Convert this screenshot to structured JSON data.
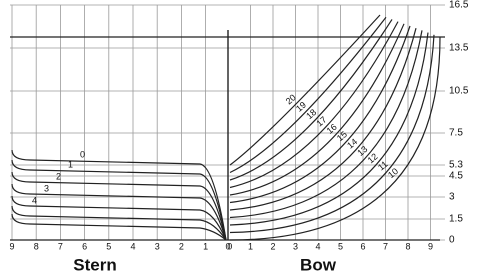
{
  "waterlines": [
    "16.5",
    "13.5",
    "10.5",
    "7.5",
    "5.3",
    "4.5",
    "3",
    "1.5",
    "0"
  ],
  "stern_axis": [
    "9",
    "8",
    "7",
    "6",
    "5",
    "4",
    "3",
    "2",
    "1",
    "0"
  ],
  "bow_axis": [
    "0",
    "1",
    "2",
    "3",
    "4",
    "5",
    "6",
    "7",
    "8",
    "9"
  ],
  "stern_stations": [
    "0",
    "1",
    "2",
    "3",
    "4"
  ],
  "bow_stations": [
    "10",
    "11",
    "12",
    "13",
    "14",
    "15",
    "16",
    "17",
    "18",
    "19",
    "20"
  ],
  "stern_label": "Stern",
  "bow_label": "Bow"
}
